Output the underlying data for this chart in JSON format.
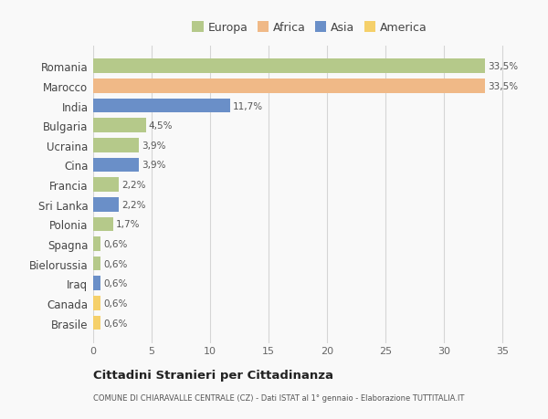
{
  "countries": [
    "Romania",
    "Marocco",
    "India",
    "Bulgaria",
    "Ucraina",
    "Cina",
    "Francia",
    "Sri Lanka",
    "Polonia",
    "Spagna",
    "Bielorussia",
    "Iraq",
    "Canada",
    "Brasile"
  ],
  "values": [
    33.5,
    33.5,
    11.7,
    4.5,
    3.9,
    3.9,
    2.2,
    2.2,
    1.7,
    0.6,
    0.6,
    0.6,
    0.6,
    0.6
  ],
  "labels": [
    "33,5%",
    "33,5%",
    "11,7%",
    "4,5%",
    "3,9%",
    "3,9%",
    "2,2%",
    "2,2%",
    "1,7%",
    "0,6%",
    "0,6%",
    "0,6%",
    "0,6%",
    "0,6%"
  ],
  "colors": [
    "#b5c98a",
    "#f0b987",
    "#6a8fc8",
    "#b5c98a",
    "#b5c98a",
    "#6a8fc8",
    "#b5c98a",
    "#6a8fc8",
    "#b5c98a",
    "#b5c98a",
    "#b5c98a",
    "#6a8fc8",
    "#f5d06a",
    "#f5d06a"
  ],
  "legend_labels": [
    "Europa",
    "Africa",
    "Asia",
    "America"
  ],
  "legend_colors": [
    "#b5c98a",
    "#f0b987",
    "#6a8fc8",
    "#f5d06a"
  ],
  "title": "Cittadini Stranieri per Cittadinanza",
  "subtitle": "COMUNE DI CHIARAVALLE CENTRALE (CZ) - Dati ISTAT al 1° gennaio - Elaborazione TUTTITALIA.IT",
  "xlim": [
    0,
    37
  ],
  "xticks": [
    0,
    5,
    10,
    15,
    20,
    25,
    30,
    35
  ],
  "bar_height": 0.72,
  "background_color": "#f9f9f9",
  "grid_color": "#d5d5d5"
}
